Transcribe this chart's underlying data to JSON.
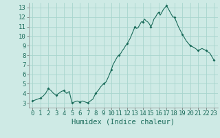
{
  "title": "",
  "xlabel": "Humidex (Indice chaleur)",
  "ylabel": "",
  "background_color": "#ceeae5",
  "grid_color": "#a8d5ce",
  "line_color": "#1a6b5a",
  "marker_color": "#1a6b5a",
  "xlim": [
    -0.5,
    23.5
  ],
  "ylim": [
    2.5,
    13.5
  ],
  "xticks": [
    0,
    1,
    2,
    3,
    4,
    5,
    6,
    7,
    8,
    9,
    10,
    11,
    12,
    13,
    14,
    15,
    16,
    17,
    18,
    19,
    20,
    21,
    22,
    23
  ],
  "yticks": [
    3,
    4,
    5,
    6,
    7,
    8,
    9,
    10,
    11,
    12,
    13
  ],
  "x_data": [
    0,
    0.33,
    0.66,
    1,
    1.33,
    1.66,
    2,
    2.33,
    2.66,
    3,
    3.33,
    3.66,
    4,
    4.33,
    4.66,
    5,
    5.33,
    5.66,
    6,
    6.33,
    6.66,
    7,
    7.33,
    7.66,
    8,
    8.33,
    8.66,
    9,
    9.33,
    9.66,
    10,
    10.2,
    10.4,
    10.6,
    10.8,
    11,
    11.2,
    11.4,
    11.6,
    11.8,
    12,
    12.2,
    12.4,
    12.6,
    12.8,
    13,
    13.2,
    13.4,
    13.6,
    13.8,
    14,
    14.2,
    14.4,
    14.6,
    14.8,
    15,
    15.2,
    15.4,
    15.6,
    15.8,
    16,
    16.2,
    16.4,
    16.6,
    16.8,
    17,
    17.2,
    17.4,
    17.6,
    17.8,
    18,
    18.5,
    19,
    19.5,
    20,
    20.5,
    21,
    21.5,
    22,
    22.5,
    23
  ],
  "y_data": [
    3.2,
    3.3,
    3.4,
    3.5,
    3.7,
    4.0,
    4.5,
    4.3,
    4.0,
    3.8,
    4.0,
    4.2,
    4.3,
    4.0,
    4.2,
    3.0,
    3.1,
    3.2,
    3.1,
    3.2,
    3.1,
    3.0,
    3.2,
    3.4,
    4.0,
    4.3,
    4.7,
    5.0,
    5.2,
    5.8,
    6.5,
    7.0,
    7.3,
    7.6,
    7.9,
    8.0,
    8.2,
    8.5,
    8.7,
    9.0,
    9.2,
    9.5,
    9.8,
    10.2,
    10.6,
    11.0,
    10.8,
    10.9,
    11.2,
    11.5,
    11.5,
    11.8,
    11.6,
    11.5,
    11.3,
    11.0,
    11.3,
    11.8,
    12.0,
    12.3,
    12.5,
    12.2,
    12.5,
    12.8,
    13.0,
    13.2,
    12.9,
    12.6,
    12.3,
    12.0,
    12.0,
    11.0,
    10.2,
    9.5,
    9.0,
    8.8,
    8.5,
    8.7,
    8.5,
    8.2,
    7.5
  ],
  "marker_x": [
    0,
    1,
    2,
    3,
    4,
    5,
    6,
    7,
    8,
    9,
    10,
    11,
    12,
    13,
    14,
    15,
    16,
    17,
    18,
    19,
    20,
    21,
    22,
    23
  ],
  "marker_y": [
    3.2,
    3.5,
    4.5,
    3.8,
    4.3,
    3.0,
    3.1,
    3.0,
    4.0,
    5.0,
    6.5,
    8.0,
    9.2,
    11.0,
    11.5,
    11.0,
    12.5,
    13.2,
    12.0,
    10.2,
    9.0,
    8.5,
    8.5,
    7.5
  ],
  "tick_fontsize": 6.5,
  "xlabel_fontsize": 7.5
}
